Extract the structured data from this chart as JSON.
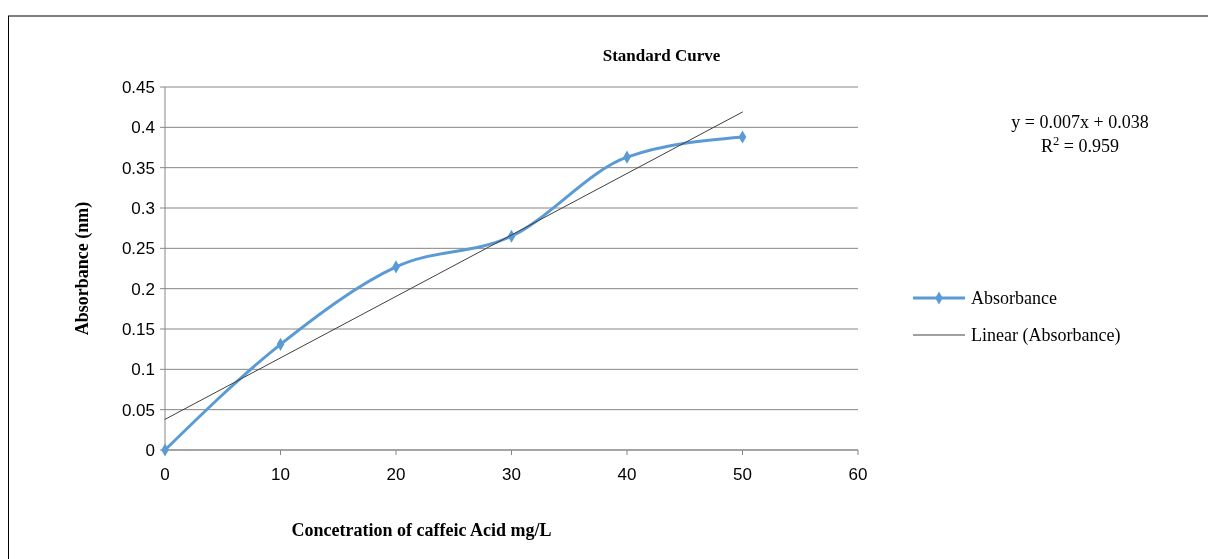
{
  "chart_data": {
    "type": "line",
    "title": "Standard Curve",
    "xlabel": "Concetration of caffeic Acid mg/L",
    "ylabel": "Absorbance (nm)",
    "x": [
      0,
      10,
      20,
      30,
      40,
      50
    ],
    "series": [
      {
        "name": "Absorbance",
        "color": "#5b9bd5",
        "values": [
          0,
          0.131,
          0.227,
          0.265,
          0.363,
          0.388
        ]
      },
      {
        "name": "Linear (Absorbance)",
        "color": "#404040",
        "x": [
          0,
          50
        ],
        "values": [
          0.038,
          0.419
        ],
        "marker": "none"
      }
    ],
    "xlim": [
      0,
      60
    ],
    "xticks": [
      0,
      10,
      20,
      30,
      40,
      50,
      60
    ],
    "ylim": [
      0,
      0.45
    ],
    "yticks": [
      {
        "value": 0,
        "label": "0"
      },
      {
        "value": 0.05,
        "label": "0.05"
      },
      {
        "value": 0.1,
        "label": "0.1"
      },
      {
        "value": 0.15,
        "label": "0.15"
      },
      {
        "value": 0.2,
        "label": "0.2"
      },
      {
        "value": 0.25,
        "label": "0.25"
      },
      {
        "value": 0.3,
        "label": "0.3"
      },
      {
        "value": 0.35,
        "label": "0.35"
      },
      {
        "value": 0.4,
        "label": "0.4"
      },
      {
        "value": 0.45,
        "label": "0.45"
      }
    ],
    "grid": "y",
    "legend": "right",
    "marker": "diamond",
    "annotations": [
      "y = 0.007x + 0.038",
      "R$^{2}$ = 0.959"
    ]
  }
}
